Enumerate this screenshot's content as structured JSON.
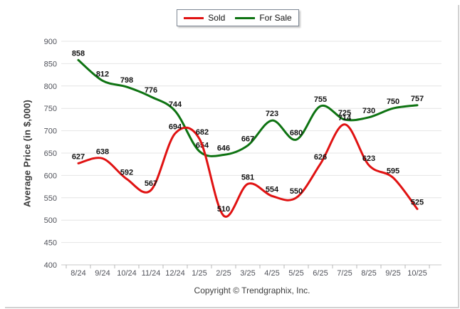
{
  "legend": {
    "items": [
      {
        "label": "Sold",
        "color": "#e01212"
      },
      {
        "label": "For Sale",
        "color": "#0e7312"
      }
    ]
  },
  "footer": {
    "copyright": "Copyright © Trendgraphix, Inc."
  },
  "chart_data": {
    "type": "line",
    "title": "",
    "ylabel": "Average Price (in $,000)",
    "xlabel": "",
    "categories": [
      "8/24",
      "9/24",
      "10/24",
      "11/24",
      "12/24",
      "1/25",
      "2/25",
      "3/25",
      "4/25",
      "5/25",
      "6/25",
      "7/25",
      "8/25",
      "9/25",
      "10/25"
    ],
    "series": [
      {
        "name": "For Sale",
        "color": "#0e7312",
        "values": [
          858,
          812,
          798,
          776,
          744,
          654,
          646,
          667,
          723,
          680,
          755,
          725,
          730,
          750,
          757
        ]
      },
      {
        "name": "Sold",
        "color": "#e01212",
        "values": [
          627,
          638,
          592,
          567,
          694,
          682,
          510,
          581,
          554,
          550,
          626,
          714,
          623,
          595,
          525
        ]
      }
    ],
    "ylim": [
      400,
      900
    ],
    "ytick_step": 50,
    "grid": true,
    "smooth": true,
    "legend_position": "top-center",
    "point_labels_visible": true
  },
  "axis": {
    "y_ticks": [
      "400",
      "450",
      "500",
      "550",
      "600",
      "650",
      "700",
      "750",
      "800",
      "850",
      "900"
    ],
    "tick_color": "#b9b9b9",
    "grid_color": "#e4e4e4",
    "axis_color": "#c9c9c9",
    "label_color": "#50525a",
    "data_label_color": "#141414"
  }
}
